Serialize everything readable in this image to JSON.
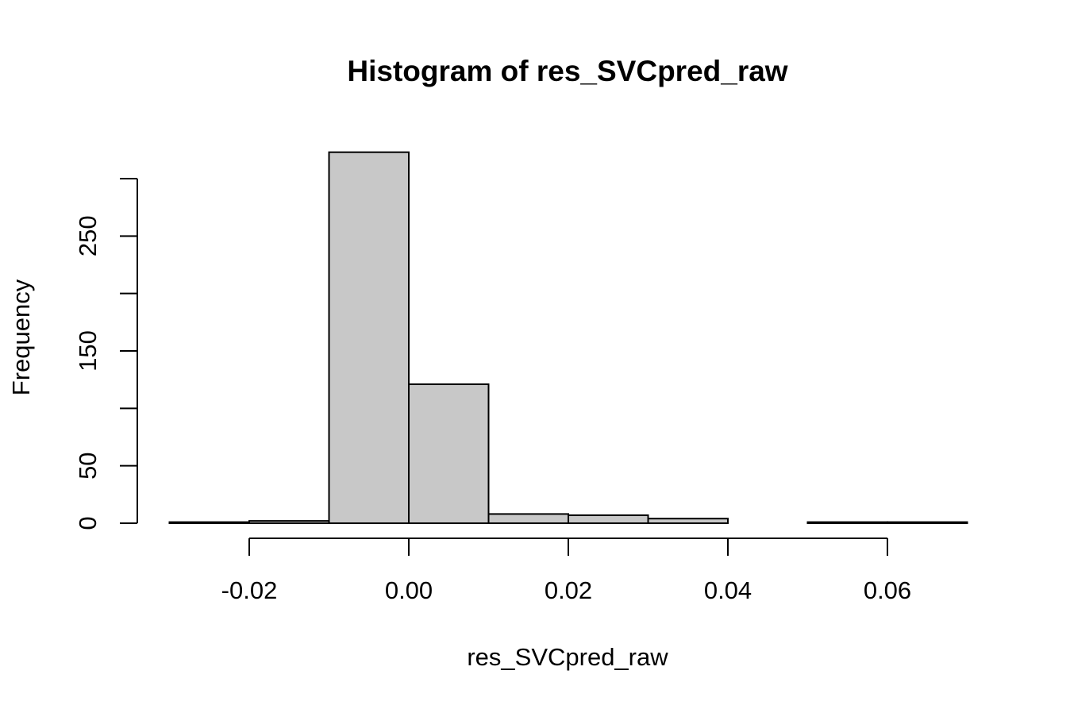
{
  "chart_data": {
    "type": "bar",
    "title": "Histogram of res_SVCpred_raw",
    "xlabel": "res_SVCpred_raw",
    "ylabel": "Frequency",
    "bins": [
      {
        "start": -0.03,
        "end": -0.02,
        "count": 1
      },
      {
        "start": -0.02,
        "end": -0.01,
        "count": 2
      },
      {
        "start": -0.01,
        "end": 0.0,
        "count": 323
      },
      {
        "start": 0.0,
        "end": 0.01,
        "count": 121
      },
      {
        "start": 0.01,
        "end": 0.02,
        "count": 8
      },
      {
        "start": 0.02,
        "end": 0.03,
        "count": 7
      },
      {
        "start": 0.03,
        "end": 0.04,
        "count": 4
      },
      {
        "start": 0.04,
        "end": 0.05,
        "count": 0
      },
      {
        "start": 0.05,
        "end": 0.06,
        "count": 1
      },
      {
        "start": 0.06,
        "end": 0.07,
        "count": 1
      }
    ],
    "xlim": [
      -0.03,
      0.07
    ],
    "ylim": [
      0,
      323
    ],
    "x_ticks": [
      -0.02,
      0.0,
      0.02,
      0.04,
      0.06
    ],
    "x_tick_labels": [
      "-0.02",
      "0.00",
      "0.02",
      "0.04",
      "0.06"
    ],
    "y_ticks": [
      0,
      50,
      100,
      150,
      200,
      250,
      300
    ],
    "y_tick_labels": [
      "0",
      "50",
      "",
      "150",
      "",
      "250",
      ""
    ],
    "bar_color": "#c8c8c8",
    "grid": false,
    "legend": "none"
  }
}
